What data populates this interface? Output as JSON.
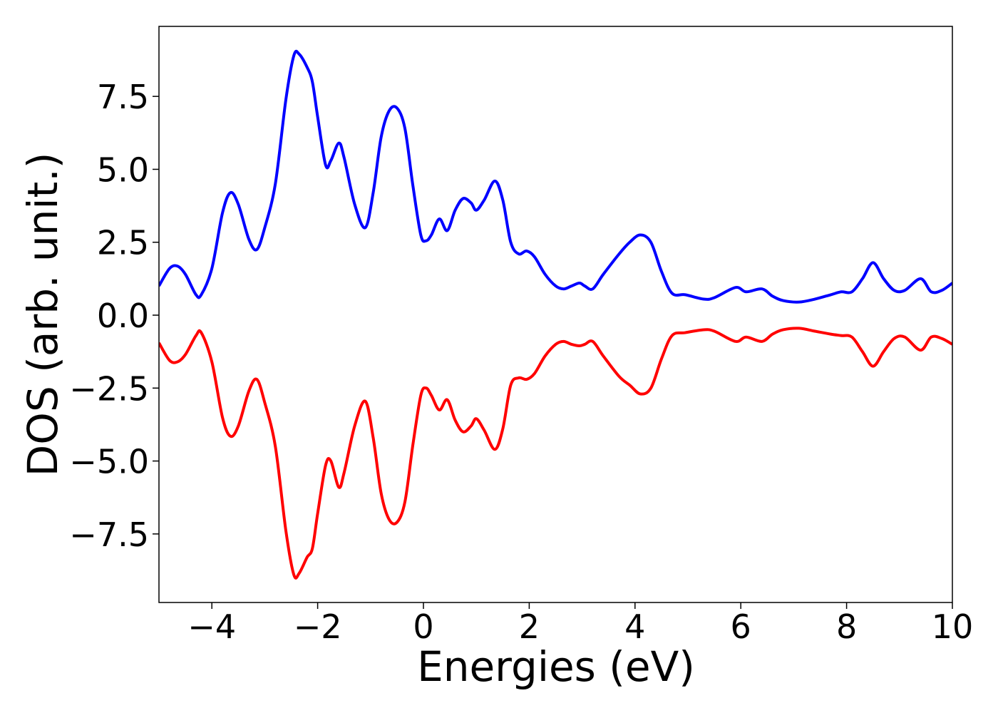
{
  "chart_data": {
    "type": "line",
    "xlabel": "Energies (eV)",
    "ylabel": "DOS (arb. unit.)",
    "xlim": [
      -5,
      10
    ],
    "ylim": [
      -9.85,
      9.9
    ],
    "xticks": [
      {
        "value": -4,
        "label": "−4"
      },
      {
        "value": -2,
        "label": "−2"
      },
      0,
      2,
      4,
      6,
      8,
      10
    ],
    "yticks": [
      {
        "value": -7.5,
        "label": "−7.5"
      },
      {
        "value": -5,
        "label": "−5.0"
      },
      {
        "value": -2.5,
        "label": "−2.5"
      },
      {
        "value": 0,
        "label": "0.0"
      },
      {
        "value": 2.5,
        "label": "2.5"
      },
      {
        "value": 5,
        "label": "5.0"
      },
      {
        "value": 7.5,
        "label": "7.5"
      }
    ],
    "x": [
      -5,
      -4.8,
      -4.65,
      -4.5,
      -4.3,
      -4.2,
      -4.0,
      -3.8,
      -3.65,
      -3.5,
      -3.3,
      -3.15,
      -3.0,
      -2.8,
      -2.6,
      -2.45,
      -2.35,
      -2.2,
      -2.1,
      -2.0,
      -1.85,
      -1.75,
      -1.6,
      -1.5,
      -1.3,
      -1.1,
      -0.95,
      -0.8,
      -0.65,
      -0.5,
      -0.35,
      -0.2,
      -0.05,
      0.05,
      0.15,
      0.3,
      0.45,
      0.6,
      0.75,
      0.9,
      1.0,
      1.15,
      1.35,
      1.5,
      1.65,
      1.8,
      1.95,
      2.1,
      2.3,
      2.5,
      2.65,
      2.8,
      2.95,
      3.05,
      3.2,
      3.4,
      3.7,
      3.9,
      4.1,
      4.3,
      4.5,
      4.7,
      4.95,
      5.3,
      5.5,
      5.9,
      6.1,
      6.4,
      6.6,
      6.8,
      7.1,
      7.4,
      7.7,
      7.9,
      8.1,
      8.3,
      8.5,
      8.7,
      8.9,
      9.1,
      9.4,
      9.6,
      9.8,
      10
    ],
    "series": [
      {
        "color": "#0000ff",
        "values": [
          1.0,
          1.6,
          1.68,
          1.4,
          0.7,
          0.7,
          1.6,
          3.5,
          4.2,
          3.8,
          2.6,
          2.25,
          3.0,
          4.5,
          7.4,
          8.9,
          8.95,
          8.5,
          8.0,
          6.8,
          5.15,
          5.3,
          5.9,
          5.4,
          3.8,
          3.0,
          4.2,
          6.1,
          7.0,
          7.1,
          6.4,
          4.45,
          2.75,
          2.55,
          2.75,
          3.3,
          2.9,
          3.6,
          4.0,
          3.85,
          3.6,
          3.95,
          4.6,
          3.95,
          2.5,
          2.1,
          2.2,
          2.0,
          1.4,
          1.0,
          0.9,
          1.0,
          1.1,
          1.0,
          0.9,
          1.4,
          2.1,
          2.5,
          2.75,
          2.5,
          1.5,
          0.75,
          0.7,
          0.55,
          0.6,
          0.95,
          0.8,
          0.9,
          0.65,
          0.5,
          0.45,
          0.55,
          0.7,
          0.8,
          0.8,
          1.25,
          1.8,
          1.25,
          0.85,
          0.85,
          1.25,
          0.8,
          0.85,
          1.1
        ]
      },
      {
        "color": "#ff0000",
        "values": [
          -0.95,
          -1.55,
          -1.6,
          -1.35,
          -0.7,
          -0.6,
          -1.6,
          -3.5,
          -4.15,
          -3.8,
          -2.6,
          -2.2,
          -3.0,
          -4.5,
          -7.4,
          -8.9,
          -8.85,
          -8.3,
          -8.0,
          -6.8,
          -5.15,
          -5.0,
          -5.9,
          -5.4,
          -3.8,
          -2.95,
          -4.2,
          -6.1,
          -7.0,
          -7.1,
          -6.4,
          -4.45,
          -2.75,
          -2.5,
          -2.75,
          -3.25,
          -2.9,
          -3.6,
          -4.0,
          -3.8,
          -3.55,
          -3.95,
          -4.6,
          -3.9,
          -2.4,
          -2.15,
          -2.2,
          -2.0,
          -1.4,
          -1.0,
          -0.9,
          -1.0,
          -1.05,
          -1.0,
          -0.9,
          -1.4,
          -2.1,
          -2.4,
          -2.7,
          -2.5,
          -1.5,
          -0.7,
          -0.6,
          -0.5,
          -0.55,
          -0.9,
          -0.75,
          -0.9,
          -0.65,
          -0.5,
          -0.45,
          -0.55,
          -0.65,
          -0.7,
          -0.75,
          -1.25,
          -1.75,
          -1.25,
          -0.8,
          -0.75,
          -1.2,
          -0.75,
          -0.8,
          -1.0
        ]
      }
    ]
  }
}
